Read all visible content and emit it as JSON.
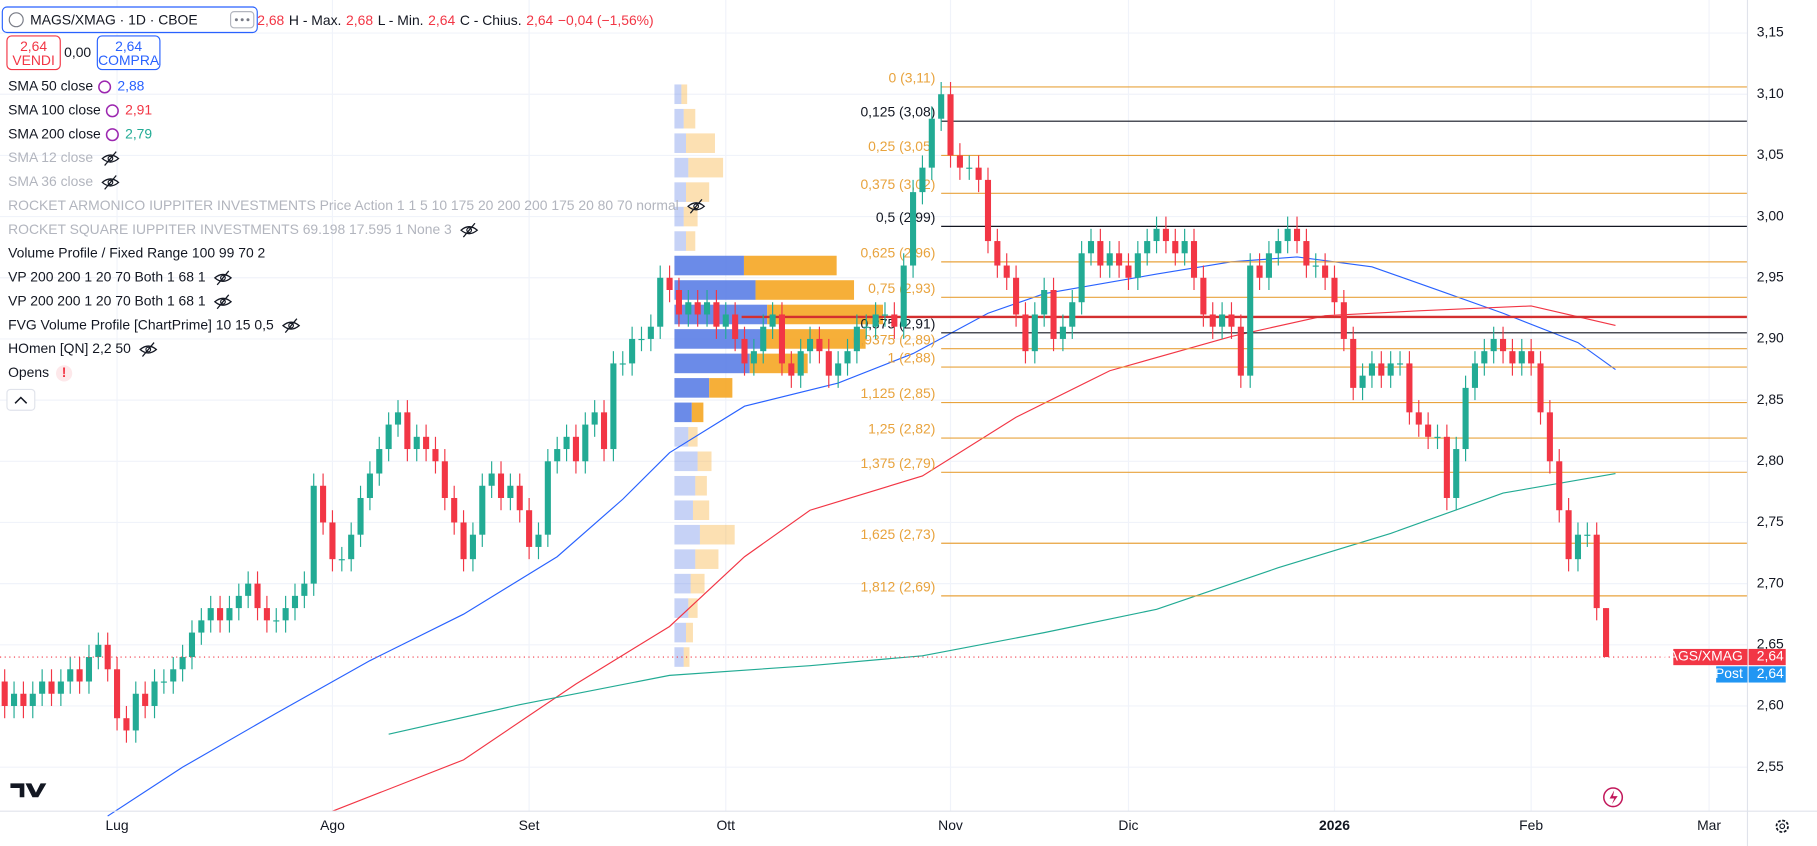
{
  "header": {
    "symbol": "MAGS/XMAG · 1D · CBOE",
    "open": "2,68",
    "fields": [
      {
        "label": "H - Max.",
        "value": "2,68"
      },
      {
        "label": "L - Min.",
        "value": "2,64"
      },
      {
        "label": "C - Chius.",
        "value": "2,64"
      }
    ],
    "change": "−0,04 (−1,56%)",
    "sell_price": "2,64",
    "sell_label": "VENDI",
    "spread": "0,00",
    "buy_price": "2,64",
    "buy_label": "COMPRA"
  },
  "legend": [
    {
      "name": "SMA 12 close",
      "greyed": true,
      "hidden": true
    },
    {
      "name": "SMA 36 close",
      "greyed": true,
      "hidden": true
    },
    {
      "name": "ROCKET ARMONICO IUPPITER INVESTMENTS Price Action 1 1 5 10 175 20 200 200 175 20 80 70 normal",
      "greyed": true,
      "hidden": true
    },
    {
      "name": "ROCKET SQUARE IUPPITER INVESTMENTS 69.198 17.595 1 None 3",
      "greyed": true,
      "hidden": true
    },
    {
      "name": "Volume Profile / Fixed Range 100 99 70 2",
      "greyed": false,
      "hidden": false
    },
    {
      "name": "VP 200 200 1 20 70 Both 1 68 1",
      "greyed": false,
      "hidden": true
    },
    {
      "name": "VP 200 200 1 20 70 Both 1 68 1",
      "greyed": false,
      "hidden": true
    },
    {
      "name": "FVG Volume Profile [ChartPrime] 10 15 0,5",
      "greyed": false,
      "hidden": true
    },
    {
      "name": "HOmen [QN] 2,2 50",
      "greyed": false,
      "hidden": true
    },
    {
      "name": "Opens",
      "greyed": false,
      "hidden": false,
      "badge": "!"
    }
  ],
  "chart_data": {
    "type": "candlestick",
    "up_color": "#22ab94",
    "down_color": "#f23645",
    "grid": true,
    "xlim": [
      -0.5,
      186.1
    ],
    "ylim": [
      2.514,
      3.177
    ],
    "xticks": [
      {
        "value": 12,
        "label": "Lug"
      },
      {
        "value": 35,
        "label": "Ago"
      },
      {
        "value": 56,
        "label": "Set"
      },
      {
        "value": 77,
        "label": "Ott"
      },
      {
        "value": 101,
        "label": "Nov"
      },
      {
        "value": 120,
        "label": "Dic"
      },
      {
        "value": 142,
        "label": "2026"
      },
      {
        "value": 163,
        "label": "Feb"
      },
      {
        "value": 182,
        "label": "Mar"
      }
    ],
    "yticks": [
      {
        "value": 2.55,
        "label": "2,55"
      },
      {
        "value": 2.6,
        "label": "2,60"
      },
      {
        "value": 2.65,
        "label": "2,65"
      },
      {
        "value": 2.7,
        "label": "2,70"
      },
      {
        "value": 2.75,
        "label": "2,75"
      },
      {
        "value": 2.8,
        "label": "2,80"
      },
      {
        "value": 2.85,
        "label": "2,85"
      },
      {
        "value": 2.9,
        "label": "2,90"
      },
      {
        "value": 2.95,
        "label": "2,95"
      },
      {
        "value": 3.0,
        "label": "3,00"
      },
      {
        "value": 3.05,
        "label": "3,05"
      },
      {
        "value": 3.1,
        "label": "3,10"
      },
      {
        "value": 3.15,
        "label": "3,15"
      }
    ],
    "open": [
      2.62,
      2.6,
      2.61,
      2.6,
      2.61,
      2.62,
      2.61,
      2.62,
      2.63,
      2.62,
      2.64,
      2.65,
      2.63,
      2.59,
      2.58,
      2.61,
      2.6,
      2.62,
      2.62,
      2.63,
      2.64,
      2.66,
      2.67,
      2.68,
      2.67,
      2.68,
      2.69,
      2.7,
      2.68,
      2.67,
      2.67,
      2.68,
      2.69,
      2.7,
      2.78,
      2.75,
      2.72,
      2.72,
      2.74,
      2.77,
      2.79,
      2.81,
      2.83,
      2.84,
      2.81,
      2.82,
      2.81,
      2.8,
      2.77,
      2.75,
      2.72,
      2.74,
      2.78,
      2.79,
      2.77,
      2.78,
      2.76,
      2.73,
      2.74,
      2.8,
      2.81,
      2.82,
      2.8,
      2.83,
      2.84,
      2.81,
      2.88,
      2.88,
      2.9,
      2.9,
      2.91,
      2.95,
      2.94,
      2.92,
      2.93,
      2.92,
      2.93,
      2.91,
      2.92,
      2.9,
      2.88,
      2.89,
      2.91,
      2.92,
      2.88,
      2.87,
      2.89,
      2.9,
      2.89,
      2.87,
      2.88,
      2.89,
      2.91,
      2.91,
      2.92,
      2.92,
      2.91,
      2.96,
      3.02,
      3.04,
      3.08,
      3.1,
      3.05,
      3.04,
      3.04,
      3.03,
      2.98,
      2.96,
      2.95,
      2.92,
      2.89,
      2.92,
      2.94,
      2.9,
      2.91,
      2.93,
      2.97,
      2.98,
      2.96,
      2.97,
      2.96,
      2.95,
      2.97,
      2.98,
      2.99,
      2.98,
      2.97,
      2.98,
      2.95,
      2.92,
      2.91,
      2.92,
      2.91,
      2.87,
      2.96,
      2.95,
      2.97,
      2.98,
      2.99,
      2.98,
      2.96,
      2.96,
      2.95,
      2.93,
      2.9,
      2.86,
      2.87,
      2.88,
      2.87,
      2.88,
      2.88,
      2.84,
      2.83,
      2.82,
      2.82,
      2.77,
      2.81,
      2.86,
      2.88,
      2.89,
      2.9,
      2.89,
      2.88,
      2.89,
      2.88,
      2.84,
      2.8,
      2.76,
      2.72,
      2.74,
      2.74,
      2.68
    ],
    "high": [
      2.63,
      2.62,
      2.62,
      2.62,
      2.63,
      2.63,
      2.63,
      2.64,
      2.64,
      2.65,
      2.66,
      2.66,
      2.64,
      2.6,
      2.62,
      2.62,
      2.63,
      2.63,
      2.64,
      2.65,
      2.67,
      2.68,
      2.69,
      2.69,
      2.69,
      2.7,
      2.71,
      2.71,
      2.69,
      2.68,
      2.69,
      2.7,
      2.71,
      2.79,
      2.79,
      2.76,
      2.73,
      2.75,
      2.78,
      2.8,
      2.82,
      2.84,
      2.85,
      2.85,
      2.83,
      2.83,
      2.82,
      2.81,
      2.78,
      2.76,
      2.75,
      2.79,
      2.8,
      2.8,
      2.79,
      2.79,
      2.77,
      2.75,
      2.81,
      2.82,
      2.83,
      2.83,
      2.84,
      2.85,
      2.85,
      2.89,
      2.89,
      2.91,
      2.91,
      2.92,
      2.96,
      2.96,
      2.95,
      2.94,
      2.94,
      2.94,
      2.94,
      2.93,
      2.93,
      2.91,
      2.9,
      2.92,
      2.93,
      2.93,
      2.89,
      2.9,
      2.91,
      2.91,
      2.9,
      2.89,
      2.9,
      2.92,
      2.92,
      2.93,
      2.93,
      2.93,
      2.97,
      3.03,
      3.05,
      3.09,
      3.11,
      3.11,
      3.06,
      3.05,
      3.05,
      3.04,
      2.99,
      2.97,
      2.96,
      2.93,
      2.93,
      2.95,
      2.95,
      2.92,
      2.94,
      2.98,
      2.99,
      2.99,
      2.98,
      2.98,
      2.97,
      2.98,
      2.99,
      3.0,
      3.0,
      2.99,
      2.99,
      2.99,
      2.96,
      2.93,
      2.93,
      2.93,
      2.92,
      2.97,
      2.97,
      2.98,
      2.99,
      3.0,
      3.0,
      2.99,
      2.97,
      2.97,
      2.96,
      2.94,
      2.91,
      2.88,
      2.89,
      2.89,
      2.89,
      2.89,
      2.89,
      2.85,
      2.84,
      2.83,
      2.83,
      2.82,
      2.87,
      2.89,
      2.9,
      2.91,
      2.91,
      2.9,
      2.9,
      2.9,
      2.89,
      2.85,
      2.81,
      2.77,
      2.75,
      2.75,
      2.75,
      2.68
    ],
    "low": [
      2.59,
      2.59,
      2.59,
      2.59,
      2.6,
      2.6,
      2.6,
      2.61,
      2.61,
      2.61,
      2.63,
      2.62,
      2.58,
      2.57,
      2.57,
      2.59,
      2.59,
      2.61,
      2.61,
      2.62,
      2.63,
      2.65,
      2.66,
      2.66,
      2.66,
      2.67,
      2.68,
      2.67,
      2.66,
      2.66,
      2.66,
      2.67,
      2.68,
      2.69,
      2.74,
      2.71,
      2.71,
      2.71,
      2.73,
      2.76,
      2.78,
      2.8,
      2.82,
      2.8,
      2.8,
      2.8,
      2.79,
      2.76,
      2.74,
      2.71,
      2.71,
      2.73,
      2.77,
      2.76,
      2.76,
      2.75,
      2.72,
      2.72,
      2.73,
      2.79,
      2.8,
      2.79,
      2.79,
      2.82,
      2.8,
      2.8,
      2.87,
      2.87,
      2.89,
      2.89,
      2.9,
      2.93,
      2.91,
      2.91,
      2.91,
      2.91,
      2.9,
      2.9,
      2.89,
      2.87,
      2.87,
      2.88,
      2.9,
      2.87,
      2.86,
      2.86,
      2.88,
      2.88,
      2.86,
      2.86,
      2.87,
      2.88,
      2.9,
      2.9,
      2.91,
      2.9,
      2.9,
      2.95,
      3.01,
      3.03,
      3.07,
      3.04,
      3.03,
      3.03,
      3.02,
      2.97,
      2.95,
      2.94,
      2.91,
      2.88,
      2.88,
      2.91,
      2.89,
      2.89,
      2.9,
      2.92,
      2.96,
      2.95,
      2.95,
      2.95,
      2.94,
      2.94,
      2.96,
      2.97,
      2.97,
      2.96,
      2.96,
      2.94,
      2.91,
      2.9,
      2.9,
      2.9,
      2.86,
      2.86,
      2.94,
      2.94,
      2.96,
      2.97,
      2.97,
      2.95,
      2.95,
      2.94,
      2.92,
      2.89,
      2.85,
      2.85,
      2.86,
      2.86,
      2.86,
      2.87,
      2.83,
      2.82,
      2.81,
      2.81,
      2.76,
      2.76,
      2.8,
      2.85,
      2.87,
      2.88,
      2.88,
      2.87,
      2.87,
      2.87,
      2.83,
      2.79,
      2.75,
      2.71,
      2.71,
      2.73,
      2.67,
      2.64
    ],
    "close": [
      2.6,
      2.61,
      2.6,
      2.61,
      2.62,
      2.61,
      2.62,
      2.63,
      2.62,
      2.64,
      2.65,
      2.63,
      2.59,
      2.58,
      2.61,
      2.6,
      2.62,
      2.62,
      2.63,
      2.64,
      2.66,
      2.67,
      2.68,
      2.67,
      2.68,
      2.69,
      2.7,
      2.68,
      2.67,
      2.67,
      2.68,
      2.69,
      2.7,
      2.78,
      2.75,
      2.72,
      2.72,
      2.74,
      2.77,
      2.79,
      2.81,
      2.83,
      2.84,
      2.81,
      2.82,
      2.81,
      2.8,
      2.77,
      2.75,
      2.72,
      2.74,
      2.78,
      2.79,
      2.77,
      2.78,
      2.76,
      2.73,
      2.74,
      2.8,
      2.81,
      2.82,
      2.8,
      2.83,
      2.84,
      2.81,
      2.88,
      2.88,
      2.9,
      2.9,
      2.91,
      2.95,
      2.94,
      2.92,
      2.93,
      2.92,
      2.93,
      2.91,
      2.92,
      2.9,
      2.88,
      2.89,
      2.91,
      2.92,
      2.88,
      2.87,
      2.89,
      2.9,
      2.89,
      2.87,
      2.88,
      2.89,
      2.91,
      2.91,
      2.92,
      2.92,
      2.91,
      2.96,
      3.02,
      3.04,
      3.08,
      3.1,
      3.05,
      3.04,
      3.04,
      3.03,
      2.98,
      2.96,
      2.95,
      2.92,
      2.89,
      2.92,
      2.94,
      2.9,
      2.91,
      2.93,
      2.97,
      2.98,
      2.96,
      2.97,
      2.96,
      2.95,
      2.97,
      2.98,
      2.99,
      2.98,
      2.97,
      2.98,
      2.95,
      2.92,
      2.91,
      2.92,
      2.91,
      2.87,
      2.96,
      2.95,
      2.97,
      2.98,
      2.99,
      2.98,
      2.96,
      2.96,
      2.95,
      2.93,
      2.9,
      2.86,
      2.87,
      2.88,
      2.87,
      2.88,
      2.88,
      2.84,
      2.83,
      2.82,
      2.82,
      2.77,
      2.81,
      2.86,
      2.88,
      2.89,
      2.9,
      2.89,
      2.88,
      2.89,
      2.88,
      2.84,
      2.8,
      2.76,
      2.72,
      2.74,
      2.74,
      2.68,
      2.64
    ],
    "series": [
      {
        "name": "SMA 50 close",
        "legend_value": "2,88",
        "color": "#2962ff",
        "x": [
          11,
          19,
          29,
          39,
          49,
          59,
          66,
          71,
          79,
          89,
          97,
          105,
          111,
          123,
          131,
          138,
          146,
          153,
          160,
          168,
          172
        ],
        "values": [
          2.51,
          2.55,
          2.594,
          2.637,
          2.675,
          2.722,
          2.769,
          2.807,
          2.845,
          2.864,
          2.888,
          2.921,
          2.937,
          2.953,
          2.963,
          2.967,
          2.959,
          2.94,
          2.921,
          2.897,
          2.875
        ]
      },
      {
        "name": "SMA 100 close",
        "legend_value": "2,91",
        "color": "#f23645",
        "x": [
          35,
          49,
          61,
          71,
          79,
          86,
          98,
          108,
          118,
          131,
          141,
          151,
          163,
          172
        ],
        "values": [
          2.514,
          2.556,
          2.618,
          2.665,
          2.722,
          2.76,
          2.788,
          2.836,
          2.874,
          2.902,
          2.919,
          2.923,
          2.927,
          2.911
        ]
      },
      {
        "name": "SMA 200 close",
        "legend_value": "2,79",
        "color": "#22ab94",
        "x": [
          41,
          55,
          71,
          86,
          98,
          111,
          123,
          136,
          148,
          160,
          172
        ],
        "values": [
          2.577,
          2.601,
          2.625,
          2.633,
          2.641,
          2.66,
          2.679,
          2.713,
          2.741,
          2.774,
          2.79
        ]
      }
    ],
    "fib_levels": [
      {
        "label": "0 (3,11)",
        "value": 3.106,
        "color": "#e8a33d"
      },
      {
        "label": "0,125 (3,08)",
        "value": 3.078,
        "color": "#131722"
      },
      {
        "label": "0,25 (3,05)",
        "value": 3.05,
        "color": "#e8a33d"
      },
      {
        "label": "0,375 (3,02)",
        "value": 3.019,
        "color": "#e8a33d"
      },
      {
        "label": "0,5 (2,99)",
        "value": 2.992,
        "color": "#131722"
      },
      {
        "label": "0,625 (2,96)",
        "value": 2.963,
        "color": "#e8a33d"
      },
      {
        "label": "0,75 (2,93)",
        "value": 2.934,
        "color": "#e8a33d"
      },
      {
        "label": "0,875 (2,91)",
        "value": 2.905,
        "color": "#131722"
      },
      {
        "label": "0,9375 (2,89)",
        "value": 2.892,
        "color": "#e8a33d"
      },
      {
        "label": "1 (2,88)",
        "value": 2.877,
        "color": "#e8a33d"
      },
      {
        "label": "1,125 (2,85)",
        "value": 2.848,
        "color": "#e8a33d"
      },
      {
        "label": "1,25 (2,82)",
        "value": 2.819,
        "color": "#e8a33d"
      },
      {
        "label": "1,375 (2,79)",
        "value": 2.791,
        "color": "#e8a33d"
      },
      {
        "label": "1,625 (2,73)",
        "value": 2.733,
        "color": "#e8a33d"
      },
      {
        "label": "1,812 (2,69)",
        "value": 2.69,
        "color": "#e8a33d"
      }
    ],
    "red_level": {
      "value": 2.918,
      "color": "#d32f2f"
    },
    "volume_profile": {
      "prices": [
        2.64,
        2.66,
        2.68,
        2.7,
        2.72,
        2.74,
        2.76,
        2.78,
        2.8,
        2.82,
        2.84,
        2.86,
        2.88,
        2.9,
        2.92,
        2.94,
        2.96,
        2.98,
        3.0,
        3.02,
        3.04,
        3.06,
        3.08,
        3.1
      ],
      "up": [
        8,
        10,
        12,
        14,
        18,
        22,
        16,
        18,
        20,
        12,
        15,
        30,
        65,
        75,
        80,
        70,
        60,
        10,
        8,
        10,
        12,
        10,
        8,
        6
      ],
      "down": [
        5,
        6,
        8,
        12,
        20,
        30,
        14,
        10,
        12,
        8,
        10,
        20,
        50,
        90,
        100,
        85,
        80,
        8,
        12,
        20,
        30,
        25,
        10,
        5
      ],
      "value_area": [
        2.84,
        2.96
      ],
      "up_color": "#5b7ee5",
      "down_color": "#f5a623"
    },
    "price_tag": {
      "name": "MAGS/XMAG",
      "value": "2,64",
      "color": "#f23645"
    },
    "post_tag": {
      "name": "Post",
      "value": "2,64",
      "color": "#2196f3"
    }
  }
}
